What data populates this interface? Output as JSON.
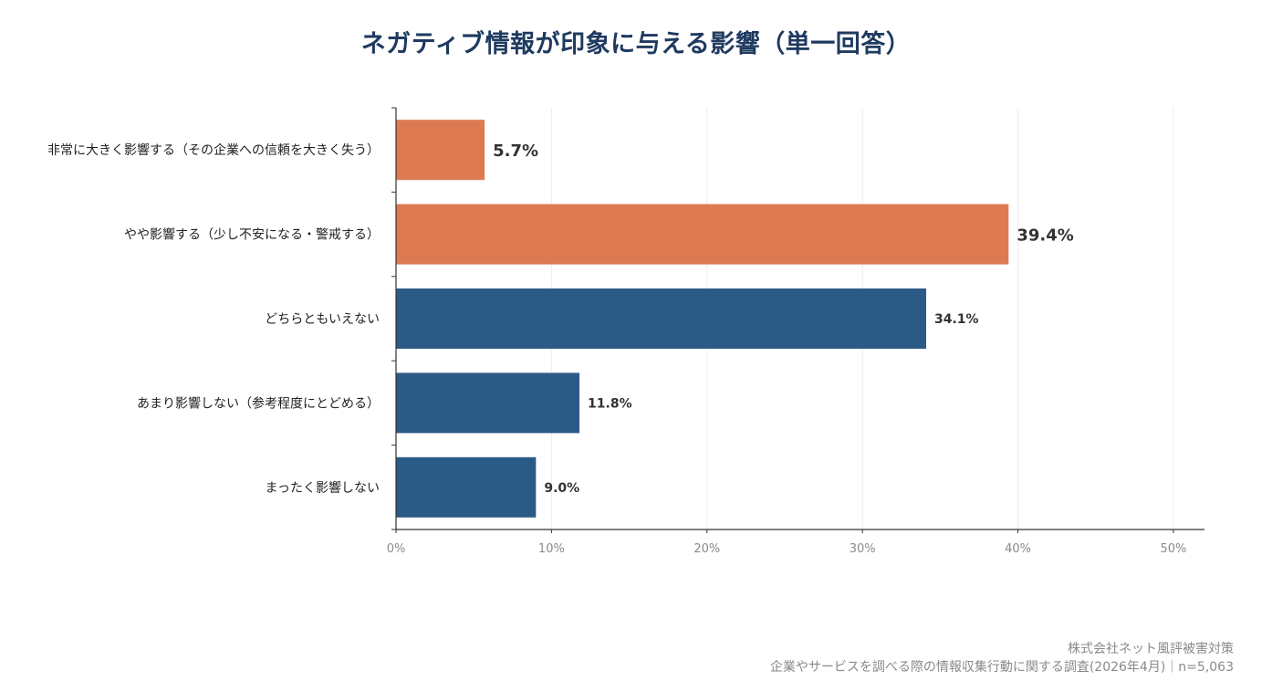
{
  "chart_data": {
    "type": "bar",
    "orientation": "horizontal",
    "title": "ネガティブ情報が印象に与える影響（単一回答）",
    "categories": [
      "非常に大きく影響する（その企業への信頼を大きく失う）",
      "やや影響する（少し不安になる・警戒する）",
      "どちらともいえない",
      "あまり影響しない（参考程度にとどめる）",
      "まったく影響しない"
    ],
    "values": [
      5.7,
      39.4,
      34.1,
      11.8,
      9.0
    ],
    "value_labels": [
      "5.7%",
      "39.4%",
      "34.1%",
      "11.8%",
      "9.0%"
    ],
    "bar_colors": [
      "#de7a52",
      "#de7a52",
      "#2c5a87",
      "#2c5a87",
      "#2c5a87"
    ],
    "xlim": [
      0,
      52
    ],
    "x_ticks": [
      0,
      10,
      20,
      30,
      40,
      50
    ],
    "x_tick_labels": [
      "0%",
      "10%",
      "20%",
      "30%",
      "40%",
      "50%"
    ],
    "xlabel": "",
    "ylabel": "",
    "grid": "vertical",
    "legend": "none"
  },
  "footer": {
    "company": "株式会社ネット風評被害対策",
    "survey": "企業やサービスを調べる際の情報収集行動に関する調査(2026年4月)｜n=5,063"
  }
}
